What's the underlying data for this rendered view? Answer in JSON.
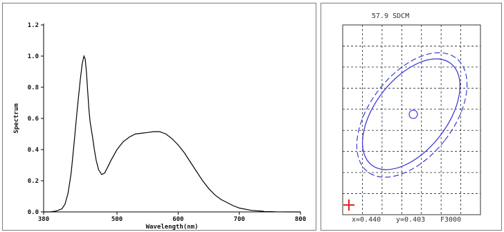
{
  "chart_data": [
    {
      "type": "line",
      "xlabel": "Wavelength(nm)",
      "ylabel": "Spectrum",
      "xlim": [
        380,
        800
      ],
      "ylim": [
        0,
        1.2
      ],
      "xticks": [
        "380",
        "500",
        "600",
        "700",
        "800"
      ],
      "yticks": [
        "0.0",
        "0.2",
        "0.4",
        "0.6",
        "0.8",
        "1.0",
        "1.2"
      ],
      "grid": false,
      "series": [
        {
          "color": "#000000",
          "x": [
            380,
            390,
            400,
            410,
            415,
            420,
            425,
            430,
            435,
            440,
            443,
            446,
            448,
            450,
            452,
            454,
            456,
            458,
            460,
            463,
            466,
            470,
            475,
            480,
            485,
            490,
            500,
            510,
            520,
            530,
            540,
            550,
            560,
            570,
            580,
            590,
            600,
            610,
            620,
            630,
            640,
            650,
            660,
            670,
            680,
            690,
            700,
            720,
            740,
            760,
            780,
            800
          ],
          "y": [
            0.0,
            0.0,
            0.005,
            0.02,
            0.05,
            0.12,
            0.25,
            0.45,
            0.66,
            0.85,
            0.95,
            1.0,
            0.98,
            0.9,
            0.78,
            0.66,
            0.58,
            0.53,
            0.48,
            0.4,
            0.33,
            0.27,
            0.24,
            0.25,
            0.29,
            0.33,
            0.4,
            0.45,
            0.48,
            0.5,
            0.505,
            0.51,
            0.515,
            0.515,
            0.5,
            0.47,
            0.43,
            0.38,
            0.32,
            0.26,
            0.2,
            0.15,
            0.11,
            0.08,
            0.06,
            0.04,
            0.025,
            0.01,
            0.004,
            0.001,
            0.0,
            0.0
          ]
        }
      ]
    },
    {
      "type": "scatter",
      "title": "57.9 SDCM",
      "grid": true,
      "ellipse_color": "#3a3ad8",
      "readout": {
        "x_label": "x=0.440",
        "y_label": "y=0.403",
        "cct_label": "F3000"
      }
    }
  ]
}
